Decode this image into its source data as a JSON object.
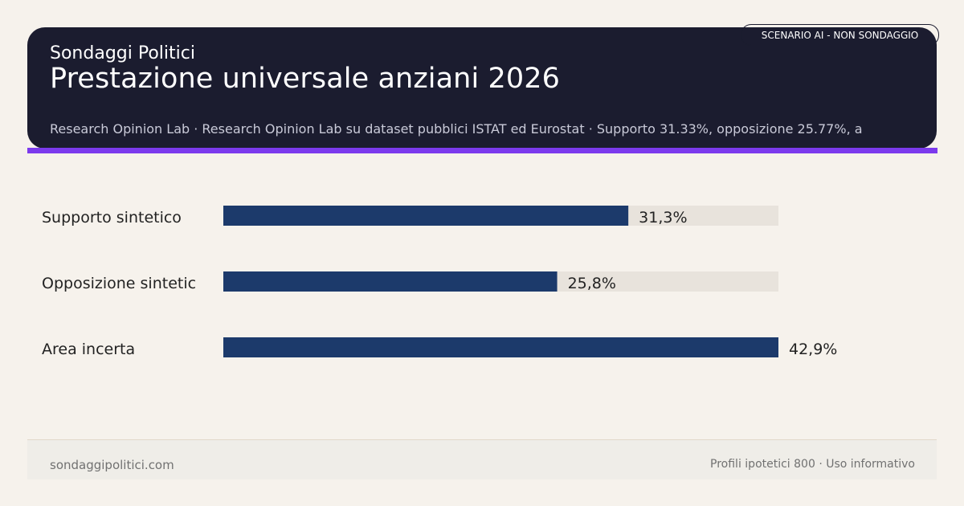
{
  "header": {
    "site_name": "Sondaggi Politici",
    "title": "Prestazione universale anziani 2026",
    "source_line": "Research Opinion Lab · Research Opinion Lab su dataset pubblici ISTAT ed Eurostat · Supporto 31.33%, opposizione 25.77%, a",
    "badge": "SCENARIO AI - NON SONDAGGIO"
  },
  "footer": {
    "site": "sondaggipolitici.com",
    "note": "Profili ipotetici 800 · Uso informativo"
  },
  "colors": {
    "background": "#f6f2ec",
    "header_bg": "#1b1c2f",
    "accent": "#7c3aed",
    "bar": "#1c3a6b",
    "track": "#e8e3dc",
    "label_text": "#222222"
  },
  "chart_data": {
    "type": "bar",
    "orientation": "horizontal",
    "categories": [
      "Supporto sintetico",
      "Opposizione sintetic",
      "Area incerta"
    ],
    "values": [
      31.3,
      25.8,
      42.9
    ],
    "value_labels": [
      "31,3%",
      "25,8%",
      "42,9%"
    ],
    "xlim": [
      0,
      42.9
    ],
    "grid": false,
    "legend": "none"
  }
}
